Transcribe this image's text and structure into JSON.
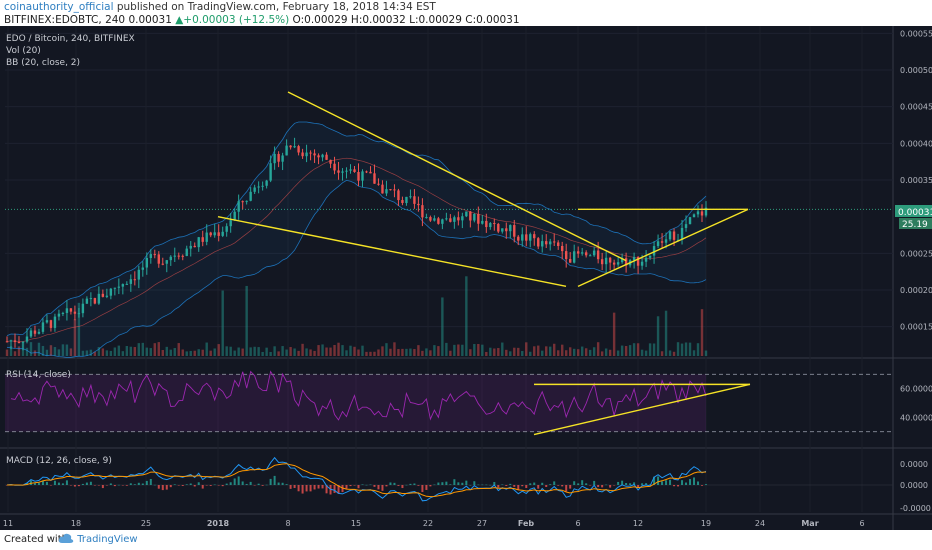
{
  "header": {
    "author": "coinauthority_official",
    "published_text": " published on TradingView.com, February 18, 2018 14:34 EST",
    "symbol": "BITFINEX:EDOBTC, 240",
    "last": "0.00031",
    "change_arrow": "▲",
    "change": "+0.00003 (+12.5%)",
    "ohlc": "O:0.00029 H:0.00032 L:0.00029 C:0.00031"
  },
  "legend": {
    "pair": "EDO / Bitcoin, 240, BITFINEX",
    "vol": "Vol (20)",
    "bb": "BB (20, close, 2)",
    "rsi": "RSI (14, close)",
    "macd": "MACD (12, 26, close, 9)"
  },
  "footer": {
    "created_with": "Created with",
    "brand": "TradingView"
  },
  "colors": {
    "background": "#131722",
    "bullish": "#26a69a",
    "bearish": "#ef5350",
    "bands": "#2196f3",
    "trendline": "#f5e326",
    "rsi": "#9c27b0",
    "macd": "#2196f3",
    "signal": "#ff9800",
    "price_label": "#2e9c7c"
  },
  "chart_data": [
    {
      "type": "candlestick",
      "panel": "price",
      "x_tick_labels": [
        "11",
        "18",
        "25",
        "2018",
        "8",
        "15",
        "22",
        "27",
        "Feb",
        "6",
        "12",
        "19",
        "24",
        "Mar",
        "6"
      ],
      "y_tick_labels": [
        "0.00055",
        "0.00050",
        "0.00045",
        "0.00040",
        "0.00035",
        "0.00025",
        "0.00020",
        "0.00015"
      ],
      "ylim": [
        0.00011,
        0.00056
      ],
      "last_price_label": "0.00031",
      "volume_label": "25.19",
      "close_path": [
        [
          "11",
          0.00013
        ],
        [
          "18",
          0.00017
        ],
        [
          "25",
          0.000235
        ],
        [
          "2018",
          0.00028
        ],
        [
          "8",
          0.0004
        ],
        [
          "15",
          0.00036
        ],
        [
          "22",
          0.0003
        ],
        [
          "27",
          0.000295
        ],
        [
          "Feb",
          0.00027
        ],
        [
          "6",
          0.000245
        ],
        [
          "12",
          0.00024
        ],
        [
          "19",
          0.00031
        ]
      ],
      "annotations": [
        {
          "label": "falling wedge upper",
          "from": [
            "8",
            0.00047
          ],
          "to": [
            "12",
            0.00024
          ]
        },
        {
          "label": "falling wedge lower",
          "from": [
            "2018",
            0.0003
          ],
          "to": [
            "6",
            0.000205
          ]
        },
        {
          "label": "resistance",
          "from": [
            "6",
            0.00031
          ],
          "to": [
            "24",
            0.00031
          ]
        },
        {
          "label": "rising support",
          "from": [
            "6",
            0.000205
          ],
          "to": [
            "24",
            0.00031
          ]
        }
      ]
    },
    {
      "type": "line",
      "panel": "rsi",
      "title": "RSI (14, close)",
      "y_tick_labels": [
        "60.0000",
        "40.0000"
      ],
      "ylim": [
        20,
        80
      ],
      "upper_band": 70,
      "lower_band": 30,
      "annotations": [
        {
          "label": "horizontal",
          "from": [
            "Feb",
            63
          ],
          "to": [
            "24",
            63
          ]
        },
        {
          "label": "rising",
          "from": [
            "Feb",
            28
          ],
          "to": [
            "24",
            63
          ]
        }
      ]
    },
    {
      "type": "line",
      "panel": "macd",
      "title": "MACD (12, 26, close, 9)",
      "y_tick_labels": [
        "0.0000",
        "0.0000",
        "-0.0000"
      ],
      "series": [
        {
          "name": "MACD"
        },
        {
          "name": "Signal"
        },
        {
          "name": "Histogram"
        }
      ]
    }
  ]
}
